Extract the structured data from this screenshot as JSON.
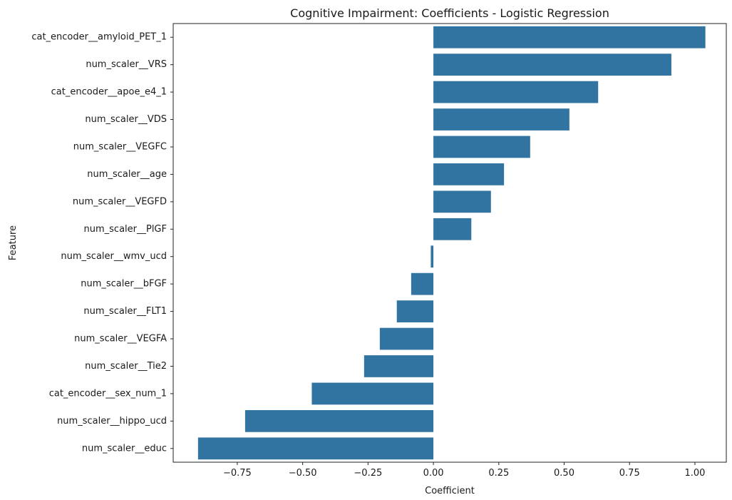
{
  "chart_data": {
    "type": "bar",
    "orientation": "horizontal",
    "title": "Cognitive Impairment: Coefficients - Logistic Regression",
    "xlabel": "Coefficient",
    "ylabel": "Feature",
    "categories": [
      "cat_encoder__amyloid_PET_1",
      "num_scaler__VRS",
      "cat_encoder__apoe_e4_1",
      "num_scaler__VDS",
      "num_scaler__VEGFC",
      "num_scaler__age",
      "num_scaler__VEGFD",
      "num_scaler__PlGF",
      "num_scaler__wmv_ucd",
      "num_scaler__bFGF",
      "num_scaler__FLT1",
      "num_scaler__VEGFA",
      "num_scaler__Tie2",
      "cat_encoder__sex_num_1",
      "num_scaler__hippo_ucd",
      "num_scaler__educ"
    ],
    "values": [
      1.04,
      0.91,
      0.63,
      0.52,
      0.37,
      0.27,
      0.22,
      0.145,
      -0.01,
      -0.085,
      -0.14,
      -0.205,
      -0.265,
      -0.465,
      -0.72,
      -0.9
    ],
    "xlim": [
      -0.995,
      1.12
    ],
    "xticks": [
      -0.75,
      -0.5,
      -0.25,
      0.0,
      0.25,
      0.5,
      0.75,
      1.0
    ],
    "xtick_labels": [
      "−0.75",
      "−0.50",
      "−0.25",
      "0.00",
      "0.25",
      "0.50",
      "0.75",
      "1.00"
    ],
    "bar_color": "#3274a1",
    "grid": false,
    "legend": "none"
  }
}
